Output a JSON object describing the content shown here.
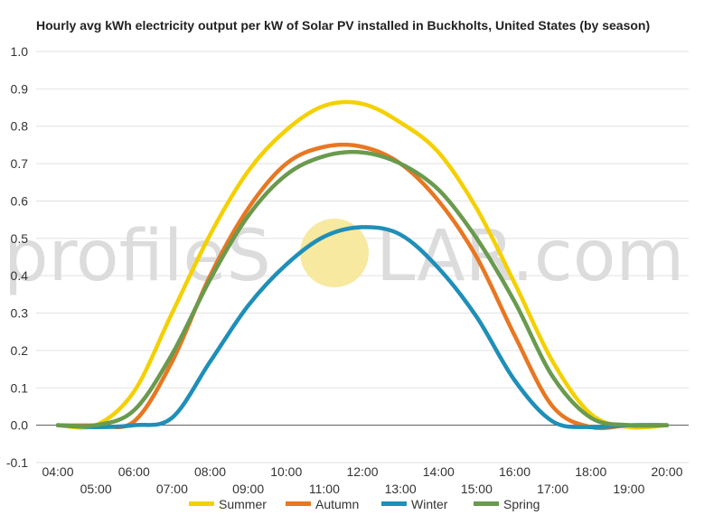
{
  "chart_data": {
    "type": "line",
    "title": "Hourly avg kWh electricity output per kW of Solar PV installed in Buckholts, United States (by season)",
    "watermark": {
      "left": "profileS",
      "right": "LAR.com",
      "sun_color": "#f7e9a0"
    },
    "ylim": [
      -0.1,
      1.0
    ],
    "yticks": [
      "1.0",
      "0.9",
      "0.8",
      "0.7",
      "0.6",
      "0.5",
      "0.4",
      "0.3",
      "0.2",
      "0.1",
      "0.0",
      "-0.1"
    ],
    "ytick_values": [
      1.0,
      0.9,
      0.8,
      0.7,
      0.6,
      0.5,
      0.4,
      0.3,
      0.2,
      0.1,
      0.0,
      -0.1
    ],
    "x": [
      4,
      5,
      6,
      7,
      8,
      9,
      10,
      11,
      12,
      13,
      14,
      15,
      16,
      17,
      18,
      19,
      20
    ],
    "xticks_upper": [
      "04:00",
      "06:00",
      "08:00",
      "10:00",
      "12:00",
      "14:00",
      "16:00",
      "18:00",
      "20:00"
    ],
    "xticks_lower": [
      "05:00",
      "07:00",
      "09:00",
      "11:00",
      "13:00",
      "15:00",
      "17:00",
      "19:00"
    ],
    "series": [
      {
        "name": "Summer",
        "color": "#f5d000",
        "values": [
          0,
          0,
          0.09,
          0.3,
          0.51,
          0.68,
          0.79,
          0.855,
          0.86,
          0.81,
          0.73,
          0.58,
          0.38,
          0.17,
          0.03,
          -0.005,
          0
        ]
      },
      {
        "name": "Autumn",
        "color": "#e87722",
        "values": [
          0,
          0,
          0.01,
          0.17,
          0.4,
          0.58,
          0.7,
          0.745,
          0.745,
          0.7,
          0.6,
          0.45,
          0.24,
          0.05,
          -0.005,
          0,
          0
        ]
      },
      {
        "name": "Winter",
        "color": "#1f8fb8",
        "values": [
          0,
          -0.005,
          0,
          0.02,
          0.17,
          0.32,
          0.43,
          0.505,
          0.53,
          0.51,
          0.42,
          0.29,
          0.12,
          0.01,
          -0.005,
          0,
          0
        ]
      },
      {
        "name": "Spring",
        "color": "#6a9a4e",
        "values": [
          0,
          0,
          0.04,
          0.19,
          0.39,
          0.56,
          0.67,
          0.72,
          0.73,
          0.7,
          0.63,
          0.5,
          0.33,
          0.13,
          0.02,
          0,
          0
        ]
      }
    ],
    "grid": true,
    "legend": "bottom"
  }
}
